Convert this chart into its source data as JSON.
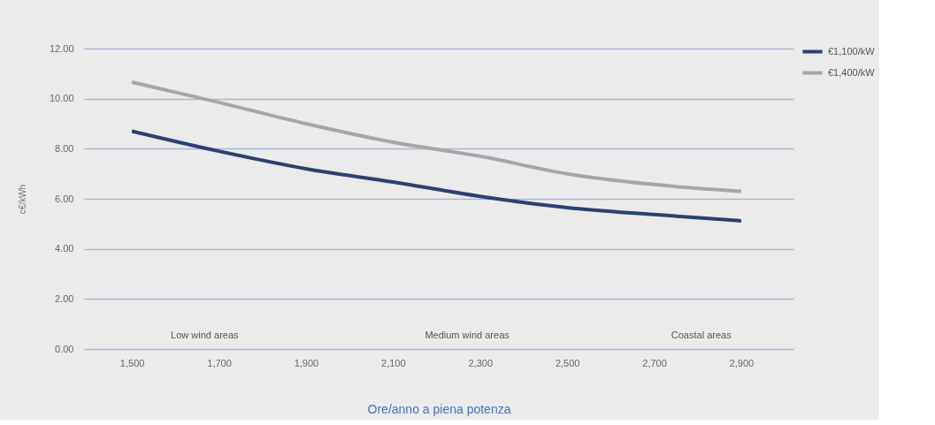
{
  "chart_data": {
    "type": "line",
    "xlabel": "Ore/anno  a piena potenza",
    "ylabel": "c€/kWh",
    "x": [
      1500,
      1700,
      1900,
      2100,
      2300,
      2500,
      2700,
      2900
    ],
    "series": [
      {
        "name": "€1,100/kW",
        "color": "#2b4170",
        "values": [
          8.7,
          7.9,
          7.2,
          6.67,
          6.1,
          5.65,
          5.37,
          5.12
        ]
      },
      {
        "name": "€1,400/kW",
        "color": "#a6a6a6",
        "values": [
          10.66,
          9.85,
          9.0,
          8.26,
          7.7,
          7.0,
          6.57,
          6.3
        ]
      }
    ],
    "xlim": [
      1390,
      3020
    ],
    "xticks": [
      {
        "value": 1500,
        "label": "1,500"
      },
      {
        "value": 1700,
        "label": "1,700"
      },
      {
        "value": 1900,
        "label": "1,900"
      },
      {
        "value": 2100,
        "label": "2,100"
      },
      {
        "value": 2300,
        "label": "2,300"
      },
      {
        "value": 2500,
        "label": "2,500"
      },
      {
        "value": 2700,
        "label": "2,700"
      },
      {
        "value": 2900,
        "label": "2,900"
      }
    ],
    "ylim": [
      0,
      12
    ],
    "yticks": [
      {
        "value": 0,
        "label": "0.00"
      },
      {
        "value": 2,
        "label": "2.00"
      },
      {
        "value": 4,
        "label": "4.00"
      },
      {
        "value": 6,
        "label": "6.00"
      },
      {
        "value": 8,
        "label": "8.00"
      },
      {
        "value": 10,
        "label": "10.00"
      },
      {
        "value": 12,
        "label": "12.00"
      }
    ],
    "annotations": [
      "Low wind areas",
      "Medium wind areas",
      "Coastal areas"
    ],
    "grid": "y",
    "legend": "top right",
    "marker": "none",
    "line_style": "solid"
  }
}
